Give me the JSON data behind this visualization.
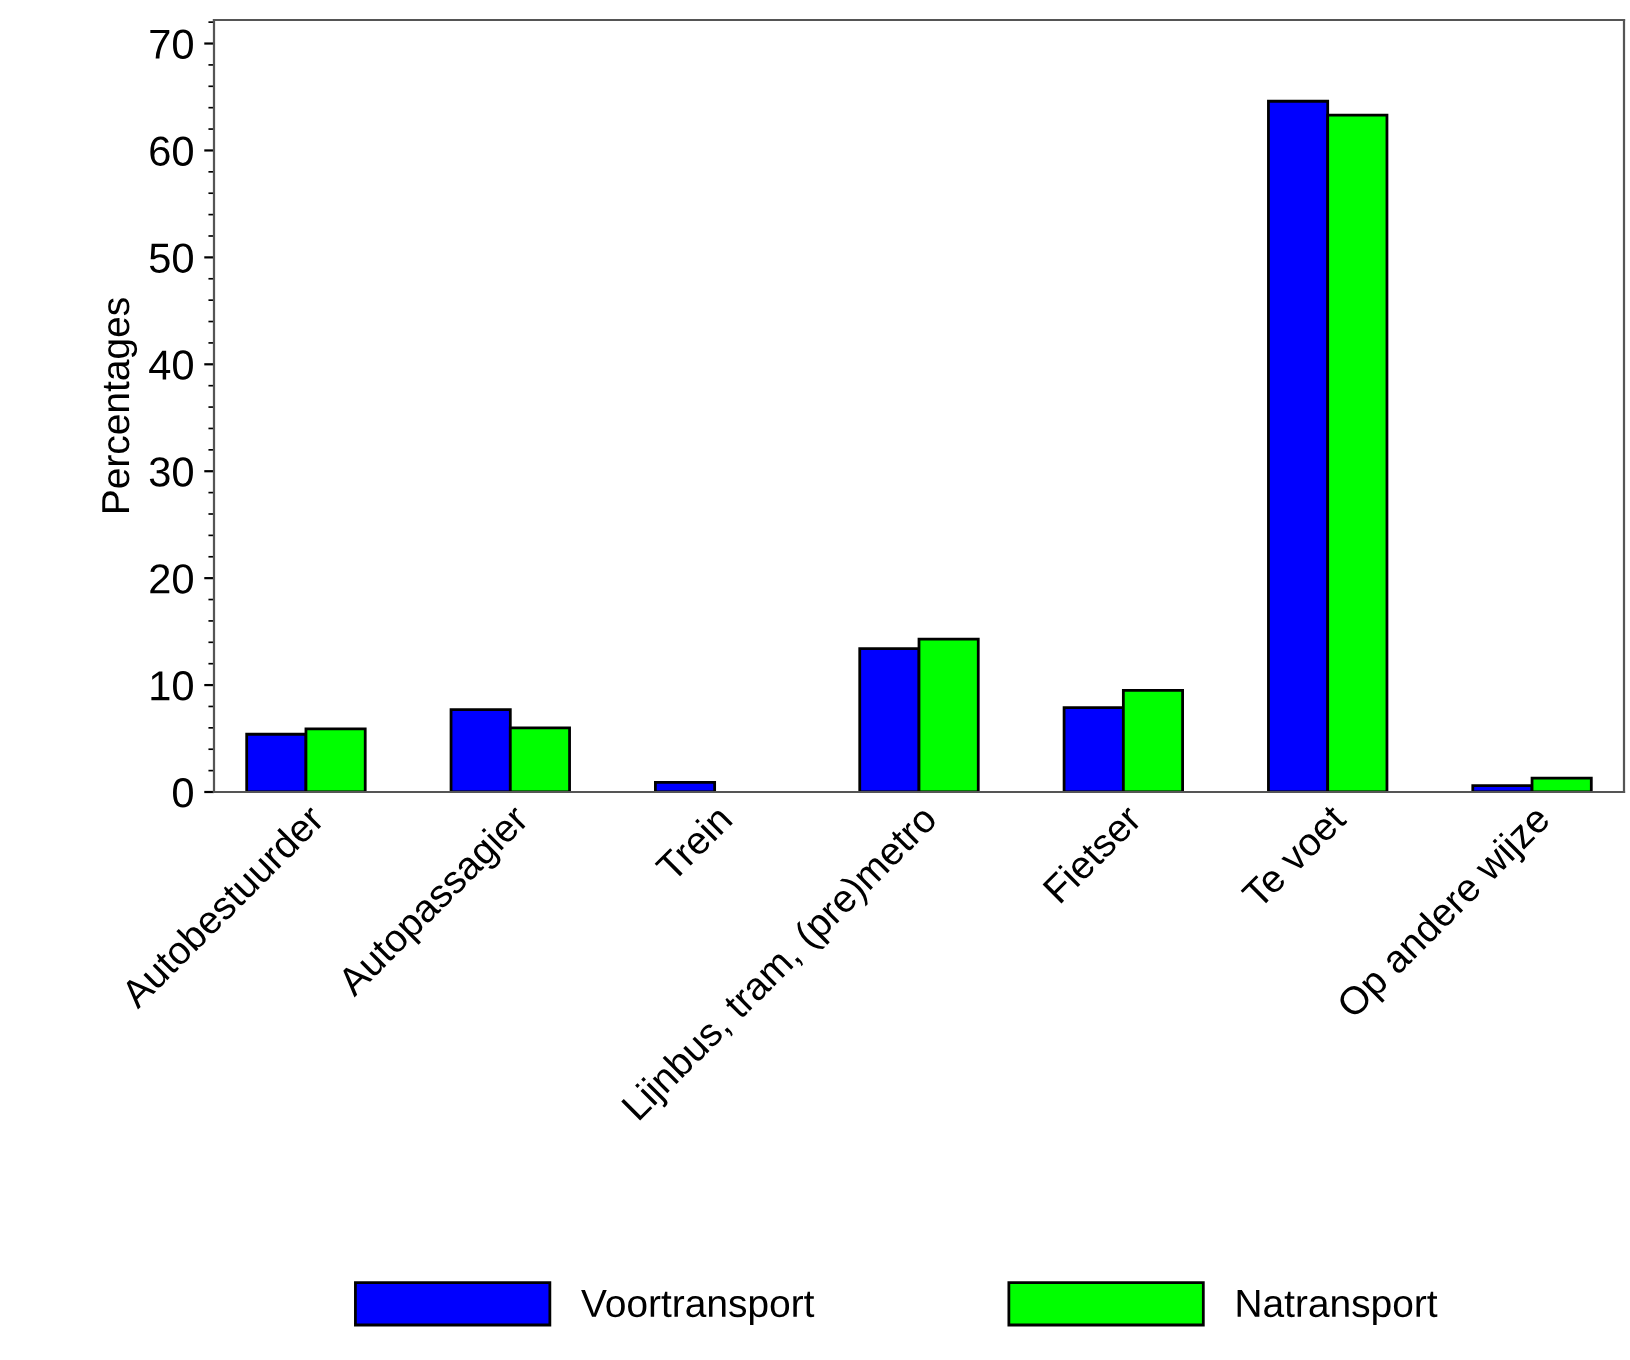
{
  "chart_data": {
    "type": "bar",
    "ylabel": "Percentages",
    "categories": [
      "Autobestuurder",
      "Autopassagier",
      "Trein",
      "Lijnbus, tram, (pre)metro",
      "Fietser",
      "Te voet",
      "Op andere wijze"
    ],
    "series": [
      {
        "name": "Voortransport",
        "color": "#0000ff",
        "values": [
          5.4,
          7.7,
          0.9,
          13.4,
          7.9,
          64.6,
          0.6
        ]
      },
      {
        "name": "Natransport",
        "color": "#00ff00",
        "values": [
          5.9,
          6.0,
          null,
          14.3,
          9.5,
          63.3,
          1.3
        ]
      }
    ],
    "ylim": [
      0,
      72.2
    ],
    "yticks": [
      0,
      10,
      20,
      30,
      40,
      50,
      60,
      70
    ],
    "grid": false,
    "legend": "bottom"
  }
}
